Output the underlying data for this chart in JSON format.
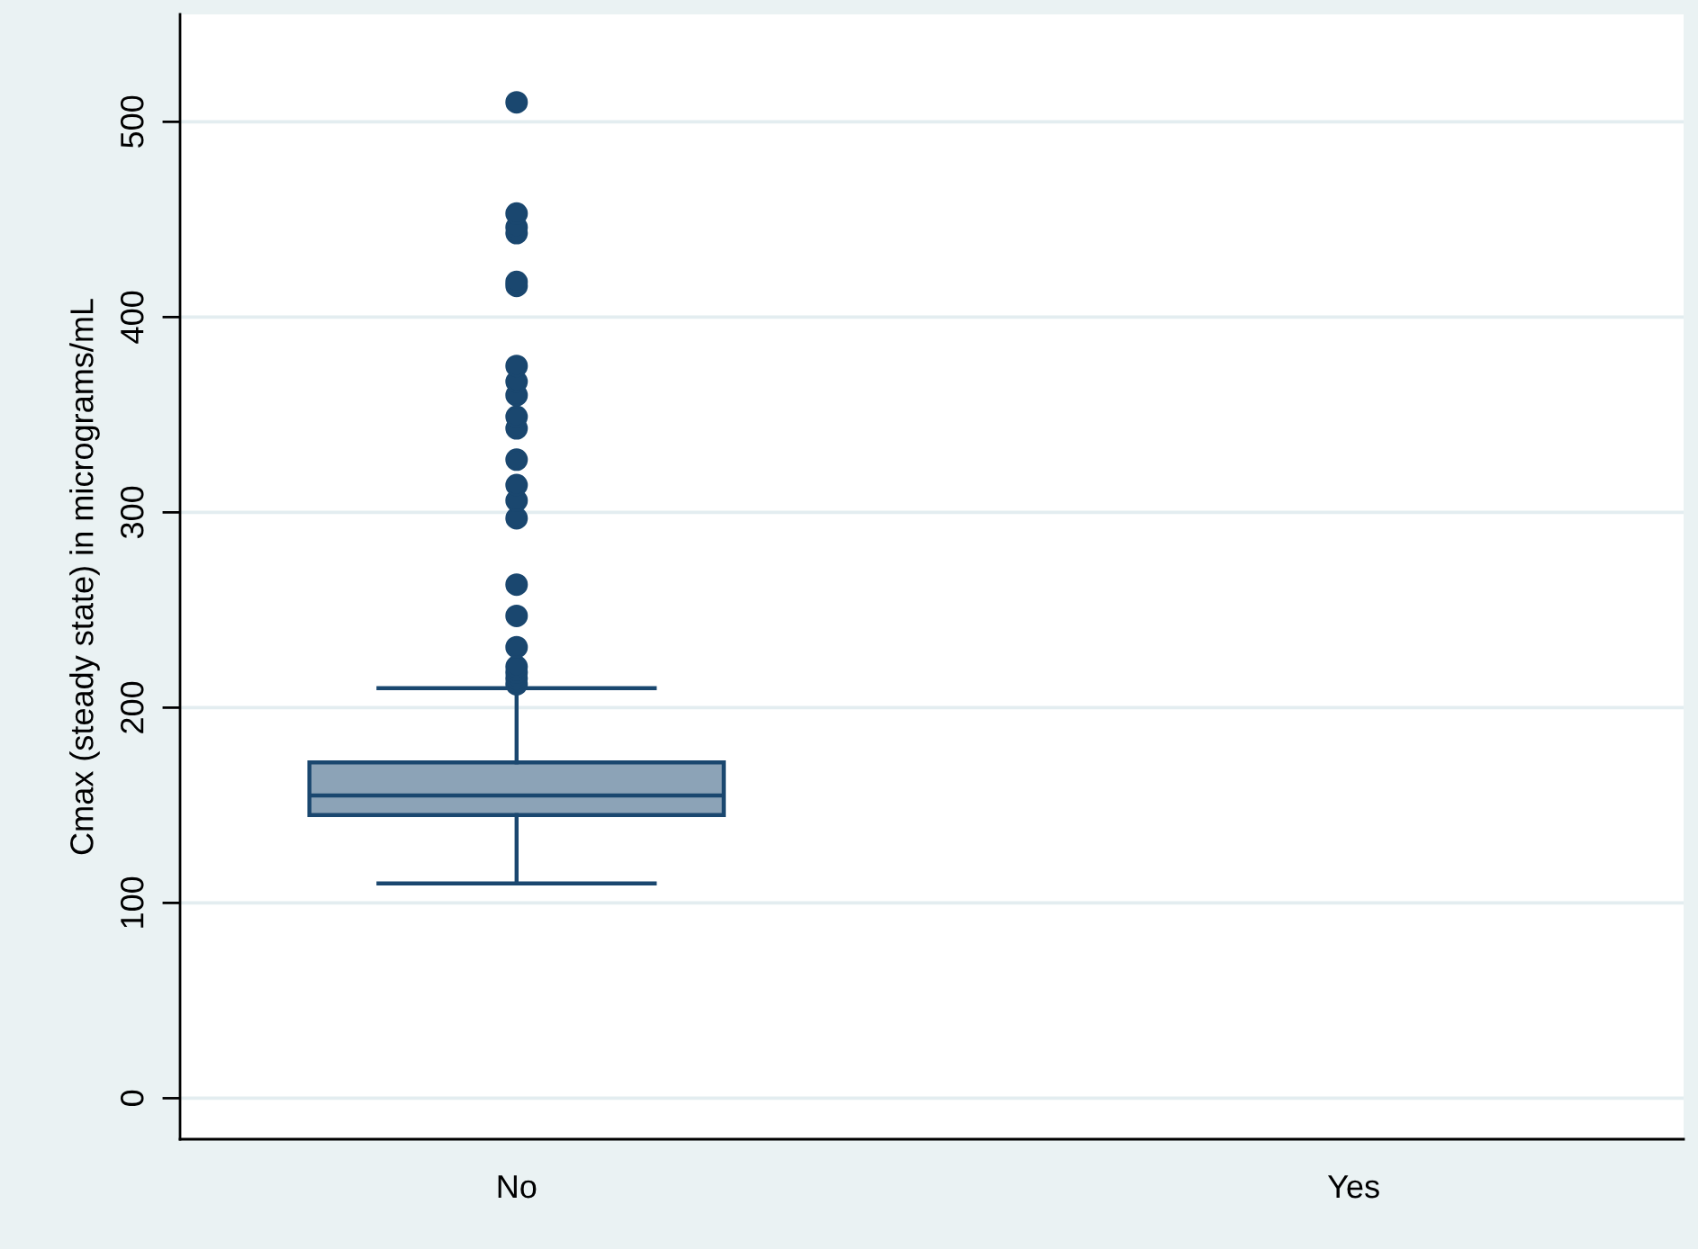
{
  "chart_data": {
    "type": "box",
    "ylabel": "Cmax (steady state) in micrograms/mL",
    "categories": [
      "No",
      "Yes"
    ],
    "boxes": [
      {
        "low": 110,
        "q1": 145,
        "median": 155,
        "q3": 172,
        "high": 210,
        "outliers": [
          212,
          215,
          218,
          221,
          231,
          247,
          263,
          297,
          306,
          314,
          327,
          343,
          349,
          360,
          367,
          375,
          416,
          418,
          443,
          446,
          453,
          510
        ]
      },
      null
    ],
    "color": "#1a476f",
    "ylim": [
      -21,
      555
    ],
    "yticks": [
      0,
      100,
      200,
      300,
      400,
      500
    ],
    "grid": "y"
  }
}
